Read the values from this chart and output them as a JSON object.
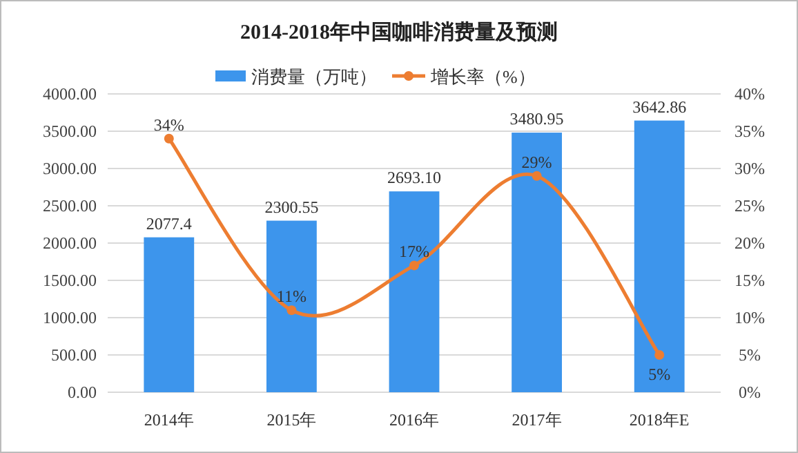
{
  "chart_data": {
    "type": "bar",
    "title": "2014-2018年中国咖啡消费量及预测",
    "categories": [
      "2014年",
      "2015年",
      "2016年",
      "2017年",
      "2018年E"
    ],
    "series": [
      {
        "name": "消费量（万吨）",
        "color": "#3d95ec",
        "values": [
          2077.4,
          2300.55,
          2693.1,
          3480.95,
          3642.86
        ],
        "value_labels": [
          "2077.4",
          "2300.55",
          "2693.10",
          "3480.95",
          "3642.86"
        ]
      },
      {
        "name": "增长率（%）",
        "type": "line",
        "axis": "y2",
        "color": "#ed7d31",
        "marker": "circle",
        "values": [
          34,
          11,
          17,
          29,
          5
        ],
        "value_labels": [
          "34%",
          "11%",
          "17%",
          "29%",
          "5%"
        ]
      }
    ],
    "ylim": [
      0,
      4000
    ],
    "yticks": [
      {
        "value": 0,
        "label": "0.00"
      },
      {
        "value": 500,
        "label": "500.00"
      },
      {
        "value": 1000,
        "label": "1000.00"
      },
      {
        "value": 1500,
        "label": "1500.00"
      },
      {
        "value": 2000,
        "label": "2000.00"
      },
      {
        "value": 2500,
        "label": "2500.00"
      },
      {
        "value": 3000,
        "label": "3000.00"
      },
      {
        "value": 3500,
        "label": "3500.00"
      },
      {
        "value": 4000,
        "label": "4000.00"
      }
    ],
    "y2lim": [
      0,
      40
    ],
    "y2ticks": [
      {
        "value": 0,
        "label": "0%"
      },
      {
        "value": 5,
        "label": "5%"
      },
      {
        "value": 10,
        "label": "10%"
      },
      {
        "value": 15,
        "label": "15%"
      },
      {
        "value": 20,
        "label": "20%"
      },
      {
        "value": 25,
        "label": "25%"
      },
      {
        "value": 30,
        "label": "30%"
      },
      {
        "value": 35,
        "label": "35%"
      },
      {
        "value": 40,
        "label": "40%"
      }
    ],
    "grid": "y",
    "legend": "top"
  }
}
